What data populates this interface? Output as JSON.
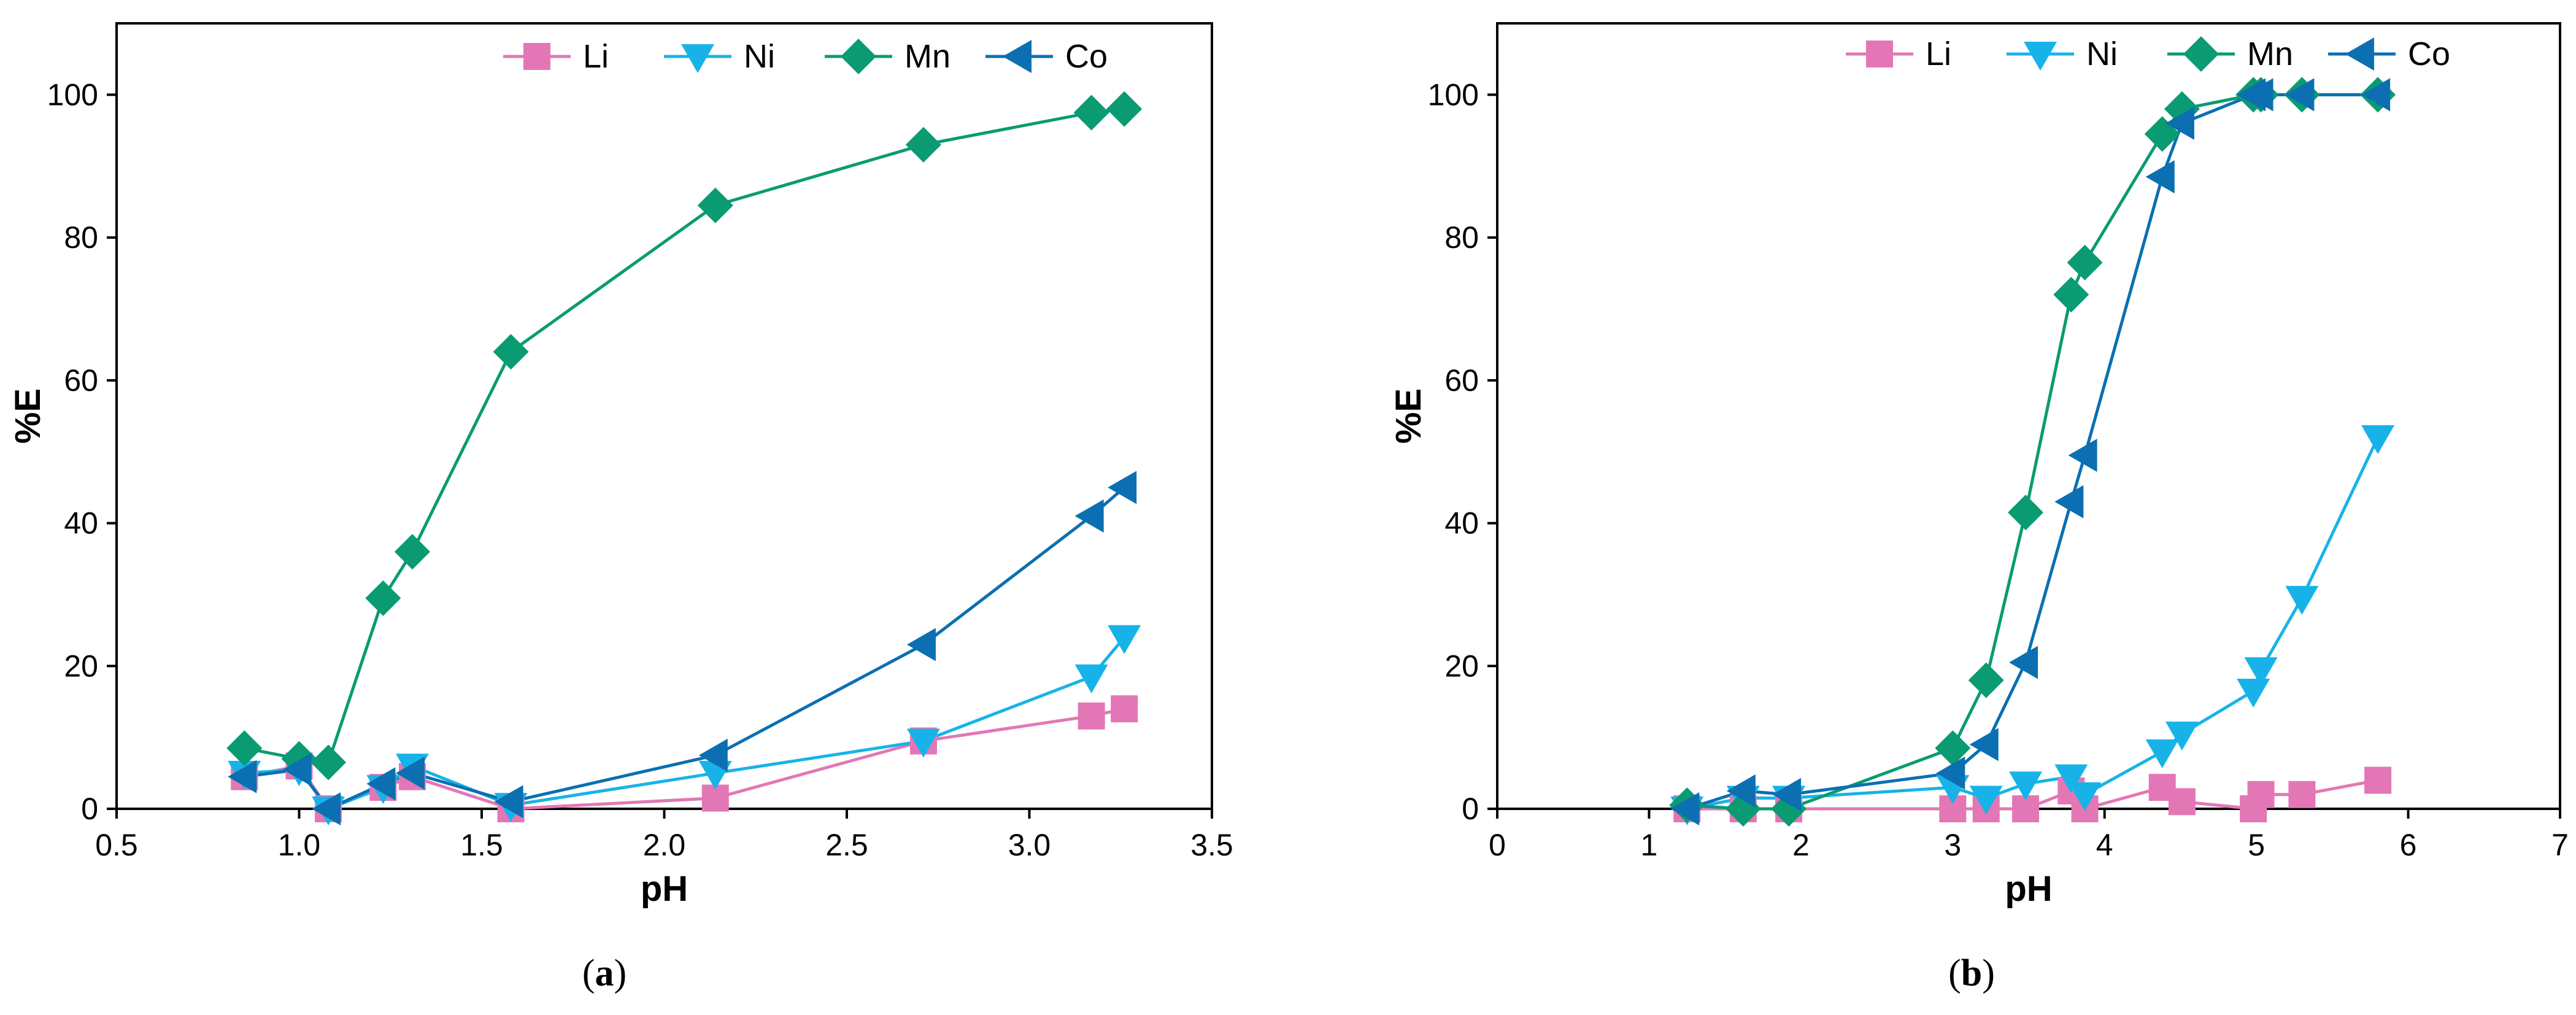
{
  "colors": {
    "Li": "#e377b5",
    "Ni": "#17b3e8",
    "Mn": "#0a9b72",
    "Co": "#0b6fb1",
    "axis": "#000000"
  },
  "chart_data": [
    {
      "type": "line",
      "panel_label": "(a)",
      "caption": {
        "open": "(",
        "letter": "a",
        "close": ")"
      },
      "xlabel": "pH",
      "ylabel": "%E",
      "xlim": [
        0.5,
        3.5
      ],
      "ylim": [
        0,
        110
      ],
      "xticks": [
        0.5,
        1.0,
        1.5,
        2.0,
        2.5,
        3.0,
        3.5
      ],
      "xtick_labels": [
        "0.5",
        "1.0",
        "1.5",
        "2.0",
        "2.5",
        "3.0",
        "3.5"
      ],
      "yticks": [
        0,
        20,
        40,
        60,
        80,
        100
      ],
      "ytick_labels": [
        "0",
        "20",
        "40",
        "60",
        "80",
        "100"
      ],
      "legend_position": "top-right",
      "grid": false,
      "series": [
        {
          "name": "Li",
          "marker": "square",
          "x": [
            0.85,
            1.0,
            1.08,
            1.23,
            1.31,
            1.58,
            2.14,
            2.71,
            3.17,
            3.26
          ],
          "y": [
            4.5,
            6,
            0,
            3,
            4.5,
            0,
            1.5,
            9.5,
            13,
            14
          ]
        },
        {
          "name": "Ni",
          "marker": "triangle-down",
          "x": [
            0.85,
            1.0,
            1.08,
            1.23,
            1.31,
            1.58,
            2.14,
            2.71,
            3.17,
            3.26
          ],
          "y": [
            5,
            5.5,
            0,
            3,
            6,
            0.5,
            5,
            9.5,
            18.5,
            24
          ]
        },
        {
          "name": "Mn",
          "marker": "diamond",
          "x": [
            0.85,
            1.0,
            1.08,
            1.23,
            1.31,
            1.58,
            2.14,
            2.71,
            3.17,
            3.26
          ],
          "y": [
            8.5,
            7,
            6.5,
            29.5,
            36,
            64,
            84.5,
            93,
            97.5,
            98
          ]
        },
        {
          "name": "Co",
          "marker": "triangle-left",
          "x": [
            0.85,
            1.0,
            1.08,
            1.23,
            1.31,
            1.58,
            2.14,
            2.71,
            3.17,
            3.26
          ],
          "y": [
            4.5,
            5.5,
            0,
            3.5,
            5,
            1,
            7.5,
            23,
            41,
            45
          ]
        }
      ]
    },
    {
      "type": "line",
      "panel_label": "(b)",
      "caption": {
        "open": "(",
        "letter": "b",
        "close": ")"
      },
      "xlabel": "pH",
      "ylabel": "%E",
      "xlim": [
        0,
        7
      ],
      "ylim": [
        0,
        110
      ],
      "xticks": [
        0,
        1,
        2,
        3,
        4,
        5,
        6,
        7
      ],
      "xtick_labels": [
        "0",
        "1",
        "2",
        "3",
        "4",
        "5",
        "6",
        "7"
      ],
      "yticks": [
        0,
        20,
        40,
        60,
        80,
        100
      ],
      "ytick_labels": [
        "0",
        "20",
        "40",
        "60",
        "80",
        "100"
      ],
      "legend_position": "top-right",
      "grid": false,
      "series": [
        {
          "name": "Li",
          "marker": "square",
          "x": [
            1.25,
            1.62,
            1.92,
            3.0,
            3.22,
            3.48,
            3.78,
            3.87,
            4.38,
            4.51,
            4.98,
            5.03,
            5.3,
            5.8
          ],
          "y": [
            0,
            0,
            0,
            0,
            0,
            0,
            2.5,
            0,
            3,
            1,
            0,
            2,
            2,
            4
          ]
        },
        {
          "name": "Ni",
          "marker": "triangle-down",
          "x": [
            1.25,
            1.62,
            1.92,
            3.0,
            3.22,
            3.48,
            3.78,
            3.87,
            4.38,
            4.51,
            4.98,
            5.03,
            5.3,
            5.8
          ],
          "y": [
            0,
            1.5,
            1.5,
            3,
            1.5,
            3.5,
            4.5,
            2,
            8,
            10.5,
            16.5,
            19.5,
            29.5,
            52
          ]
        },
        {
          "name": "Mn",
          "marker": "diamond",
          "x": [
            1.25,
            1.62,
            1.92,
            3.0,
            3.22,
            3.48,
            3.78,
            3.87,
            4.38,
            4.51,
            4.98,
            5.03,
            5.3,
            5.8
          ],
          "y": [
            0.5,
            0,
            0,
            8.5,
            18,
            41.5,
            72,
            76.5,
            94.5,
            98,
            100,
            100,
            100,
            100
          ]
        },
        {
          "name": "Co",
          "marker": "triangle-left",
          "x": [
            1.25,
            1.62,
            1.92,
            3.0,
            3.22,
            3.48,
            3.78,
            3.87,
            4.38,
            4.51,
            4.98,
            5.03,
            5.3,
            5.8
          ],
          "y": [
            0,
            2.5,
            2,
            5,
            9,
            20.5,
            43,
            49.5,
            88.5,
            96,
            100,
            100,
            100,
            100
          ]
        }
      ]
    }
  ]
}
